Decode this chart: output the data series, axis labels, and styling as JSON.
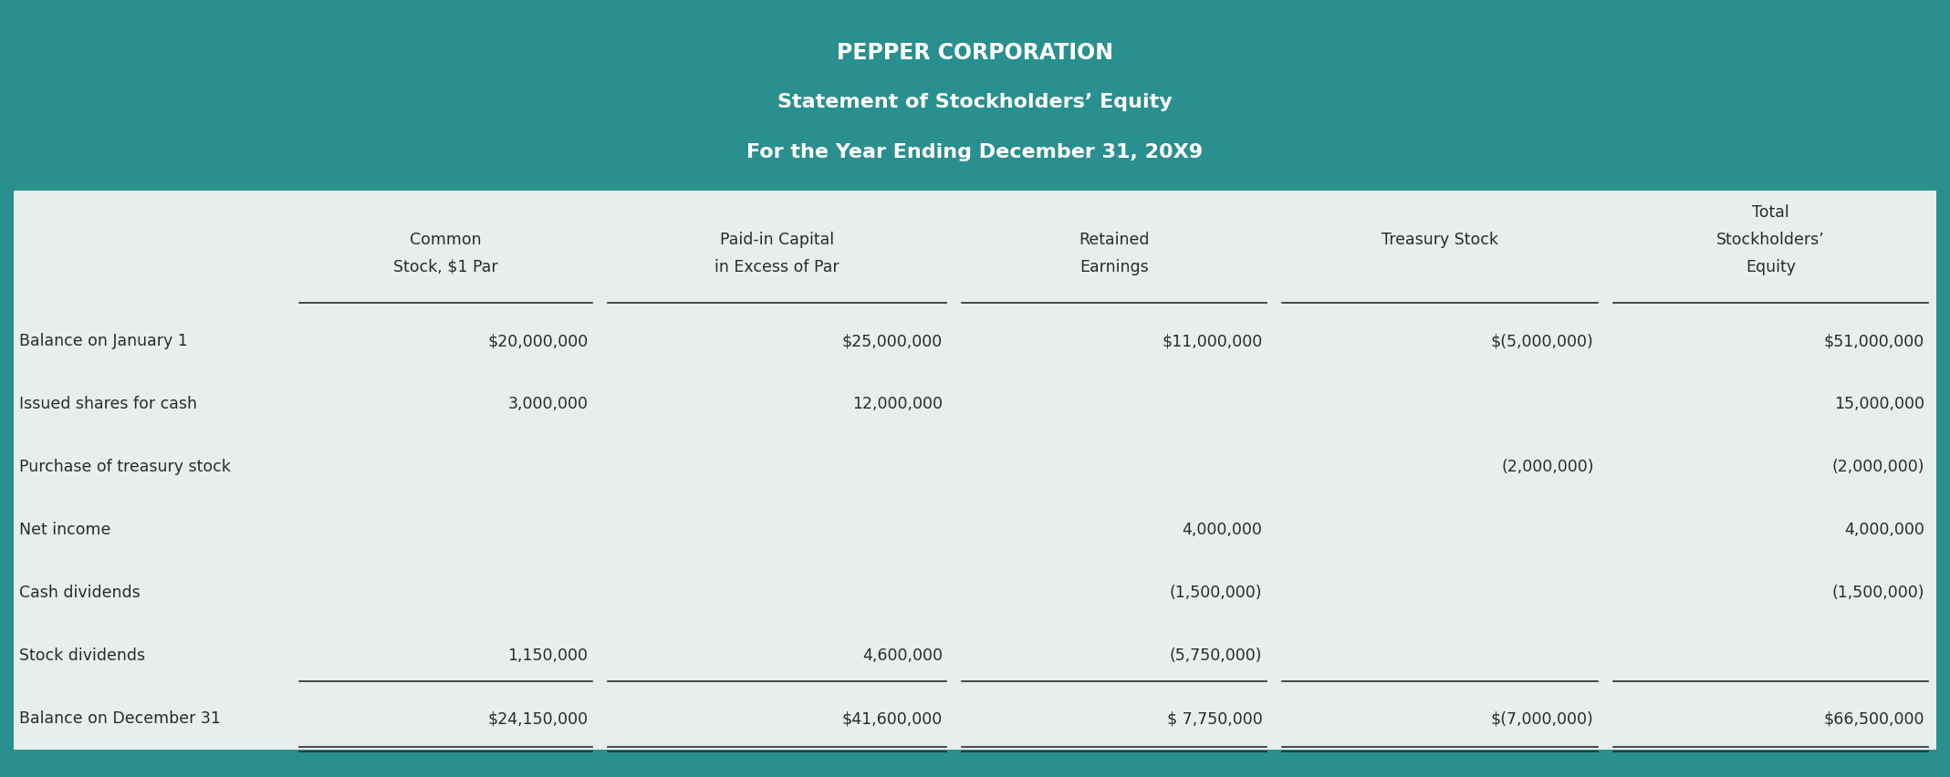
{
  "title_line1": "PEPPER CORPORATION",
  "title_line2": "Statement of Stockholders’ Equity",
  "title_line3": "For the Year Ending December 31, 20X9",
  "header_bg": "#2a8f8f",
  "body_bg": "#e8eeee",
  "border_color": "#2a8f8f",
  "col_headers_line1": [
    "Common",
    "Paid-in Capital",
    "Retained",
    "",
    "Total"
  ],
  "col_headers_line2": [
    "Stock, $1 Par",
    "in Excess of Par",
    "Earnings",
    "Treasury Stock",
    "Stockholders’"
  ],
  "col_headers_line3": [
    "",
    "",
    "",
    "",
    "Equity"
  ],
  "row_labels": [
    "Balance on January 1",
    "Issued shares for cash",
    "Purchase of treasury stock",
    "Net income",
    "Cash dividends",
    "Stock dividends",
    "Balance on December 31"
  ],
  "data": [
    [
      "$20,000,000",
      "$25,000,000",
      "$11,000,000",
      "$(5,000,000)",
      "$51,000,000"
    ],
    [
      "3,000,000",
      "12,000,000",
      "",
      "",
      "15,000,000"
    ],
    [
      "",
      "",
      "",
      "(2,000,000)",
      "(2,000,000)"
    ],
    [
      "",
      "",
      "4,000,000",
      "",
      "4,000,000"
    ],
    [
      "",
      "",
      "(1,500,000)",
      "",
      "(1,500,000)"
    ],
    [
      "1,150,000",
      "4,600,000",
      "(5,750,000)",
      "",
      ""
    ],
    [
      "$24,150,000",
      "$41,600,000",
      "$ 7,750,000",
      "$(7,000,000)",
      "$66,500,000"
    ]
  ],
  "text_color": "#2a2a2a",
  "title_text_color": "#ffffff",
  "font_size_title1": 17,
  "font_size_title23": 16,
  "font_size_header": 12.5,
  "font_size_body": 12.5
}
